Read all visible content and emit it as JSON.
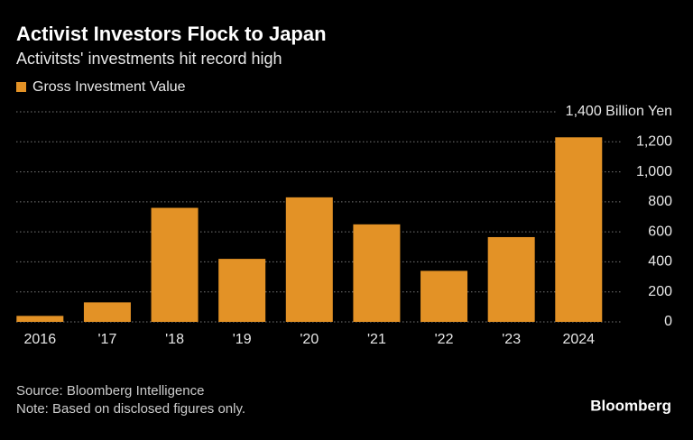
{
  "chart_data": {
    "type": "bar",
    "title": "Activist Investors Flock to Japan",
    "subtitle": "Activitsts' investments hit record high",
    "categories": [
      "2016",
      "'17",
      "'18",
      "'19",
      "'20",
      "'21",
      "'22",
      "'23",
      "2024"
    ],
    "series": [
      {
        "name": "Gross Investment Value",
        "color": "#e39226",
        "values": [
          40,
          130,
          760,
          420,
          830,
          650,
          340,
          565,
          1230
        ]
      }
    ],
    "ylim": [
      0,
      1400
    ],
    "yticks": [
      0,
      200,
      400,
      600,
      800,
      {
        "value": 1000,
        "label": "1,000"
      },
      {
        "value": 1200,
        "label": "1,200"
      },
      {
        "value": 1400,
        "label": "1,400 Billion Yen"
      }
    ],
    "grid": true,
    "legend": "top-left",
    "source": "Source: Bloomberg Intelligence",
    "note": "Note: Based on disclosed figures only.",
    "brand": "Bloomberg"
  }
}
